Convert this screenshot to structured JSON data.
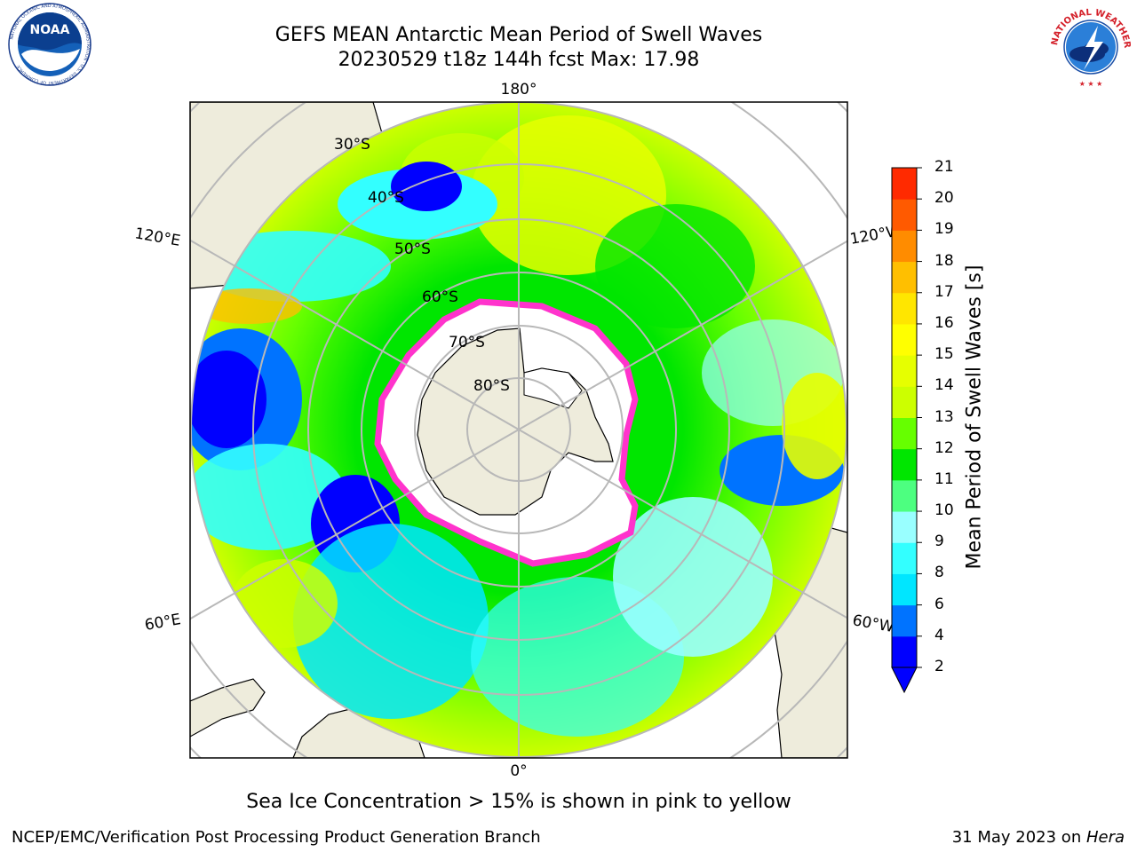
{
  "header": {
    "title": "GEFS MEAN Antarctic Mean Period of Swell Waves",
    "subtitle": "20230529 t18z 144h fcst   Max: 17.98"
  },
  "logos": {
    "noaa": {
      "text": "NOAA",
      "ring_text": "NATIONAL OCEANIC AND ATMOSPHERIC ADMINISTRATION · U.S. DEPARTMENT OF COMMERCE"
    },
    "nws": {
      "ring_text": "NATIONAL WEATHER SERVICE"
    }
  },
  "map": {
    "projection": "south polar stereographic",
    "longitude_labels": {
      "top": "180°",
      "bottom": "0°",
      "upper_left": "120°E",
      "upper_right": "120°W",
      "lower_left": "60°E",
      "lower_right": "60°W"
    },
    "latitude_labels": [
      "30°S",
      "40°S",
      "50°S",
      "60°S",
      "70°S",
      "80°S"
    ],
    "colors": {
      "land": "#eeecdc",
      "ice": "#ffffff",
      "sea_ice_edge": "#ff33cc",
      "grid": "#b8b8b8"
    }
  },
  "colorbar": {
    "title": "Mean Period of Swell Waves [s]",
    "ticks": [
      "2",
      "4",
      "6",
      "8",
      "9",
      "10",
      "11",
      "12",
      "13",
      "14",
      "15",
      "16",
      "17",
      "18",
      "19",
      "20",
      "21"
    ],
    "colors": [
      "#0000ff",
      "#0073ff",
      "#00e6ff",
      "#33ffff",
      "#99ffff",
      "#4dff80",
      "#00e600",
      "#66ff00",
      "#ccff00",
      "#e6ff00",
      "#ffff00",
      "#ffe600",
      "#ffbf00",
      "#ff8c00",
      "#ff5a00",
      "#ff2a00"
    ],
    "extend": "min"
  },
  "footer": {
    "note": "Sea Ice Concentration > 15% is shown in pink to yellow",
    "credit": "NCEP/EMC/Verification Post Processing Product Generation Branch",
    "date": "31 May 2023 on ",
    "machine": "Hera"
  }
}
